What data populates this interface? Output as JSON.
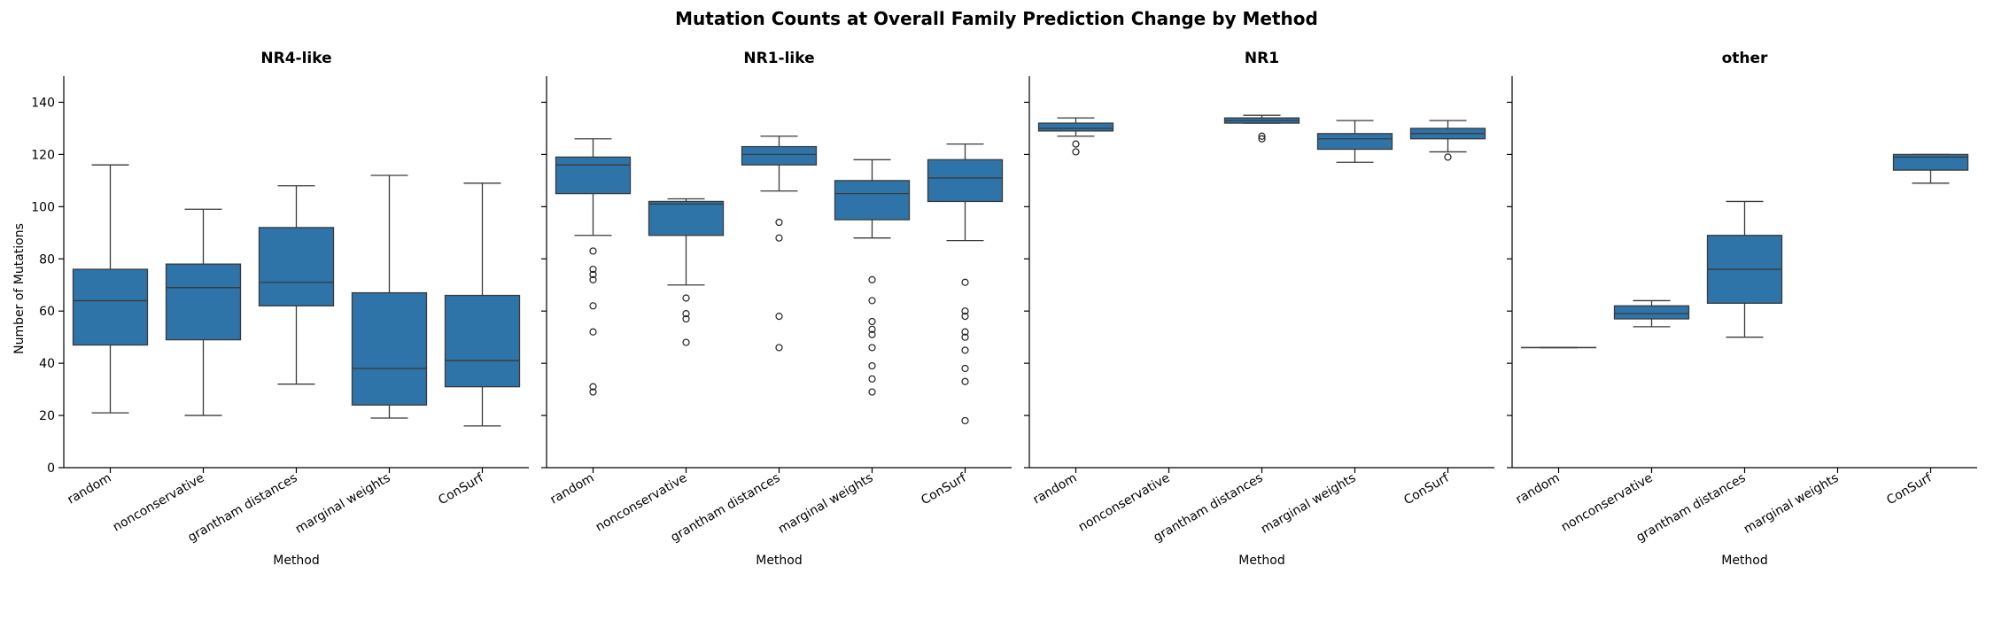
{
  "chart_data": {
    "type": "box",
    "title": "Mutation Counts at Overall Family Prediction Change by Method",
    "ylabel": "Number of Mutations",
    "xlabel": "Method",
    "ylim": [
      0,
      150
    ],
    "yticks": [
      0,
      20,
      40,
      60,
      80,
      100,
      120,
      140
    ],
    "categories": [
      "random",
      "nonconservative",
      "grantham distances",
      "marginal weights",
      "ConSurf"
    ],
    "box_color": "#2e74a9",
    "panels": [
      {
        "name": "NR4-like",
        "boxes": [
          {
            "method": "random",
            "q1": 47,
            "median": 64,
            "q3": 76,
            "whisker_low": 21,
            "whisker_high": 116,
            "outliers": []
          },
          {
            "method": "nonconservative",
            "q1": 49,
            "median": 69,
            "q3": 78,
            "whisker_low": 20,
            "whisker_high": 99,
            "outliers": []
          },
          {
            "method": "grantham distances",
            "q1": 62,
            "median": 71,
            "q3": 92,
            "whisker_low": 32,
            "whisker_high": 108,
            "outliers": []
          },
          {
            "method": "marginal weights",
            "q1": 24,
            "median": 38,
            "q3": 67,
            "whisker_low": 19,
            "whisker_high": 112,
            "outliers": []
          },
          {
            "method": "ConSurf",
            "q1": 31,
            "median": 41,
            "q3": 66,
            "whisker_low": 16,
            "whisker_high": 109,
            "outliers": []
          }
        ]
      },
      {
        "name": "NR1-like",
        "boxes": [
          {
            "method": "random",
            "q1": 105,
            "median": 116,
            "q3": 119,
            "whisker_low": 89,
            "whisker_high": 126,
            "outliers": [
              83,
              76,
              74,
              72,
              62,
              52,
              31,
              29
            ]
          },
          {
            "method": "nonconservative",
            "q1": 89,
            "median": 101,
            "q3": 102,
            "whisker_low": 70,
            "whisker_high": 103,
            "outliers": [
              65,
              59,
              57,
              48
            ]
          },
          {
            "method": "grantham distances",
            "q1": 116,
            "median": 120,
            "q3": 123,
            "whisker_low": 106,
            "whisker_high": 127,
            "outliers": [
              94,
              88,
              58,
              46
            ]
          },
          {
            "method": "marginal weights",
            "q1": 95,
            "median": 105,
            "q3": 110,
            "whisker_low": 88,
            "whisker_high": 118,
            "outliers": [
              72,
              64,
              56,
              53,
              51,
              46,
              39,
              34,
              29
            ]
          },
          {
            "method": "ConSurf",
            "q1": 102,
            "median": 111,
            "q3": 118,
            "whisker_low": 87,
            "whisker_high": 124,
            "outliers": [
              71,
              60,
              58,
              52,
              50,
              45,
              38,
              33,
              18
            ]
          }
        ]
      },
      {
        "name": "NR1",
        "boxes": [
          {
            "method": "random",
            "q1": 129,
            "median": 130,
            "q3": 132,
            "whisker_low": 127,
            "whisker_high": 134,
            "outliers": [
              124,
              121
            ]
          },
          {
            "method": "nonconservative",
            "empty": true
          },
          {
            "method": "grantham distances",
            "q1": 132,
            "median": 133,
            "q3": 134,
            "whisker_low": 132,
            "whisker_high": 135,
            "outliers": [
              127,
              126
            ]
          },
          {
            "method": "marginal weights",
            "q1": 122,
            "median": 126,
            "q3": 128,
            "whisker_low": 117,
            "whisker_high": 133,
            "outliers": []
          },
          {
            "method": "ConSurf",
            "q1": 126,
            "median": 128,
            "q3": 130,
            "whisker_low": 121,
            "whisker_high": 133,
            "outliers": [
              119
            ]
          }
        ]
      },
      {
        "name": "other",
        "boxes": [
          {
            "method": "random",
            "q1": 46,
            "median": 46,
            "q3": 46,
            "whisker_low": 46,
            "whisker_high": 46,
            "outliers": []
          },
          {
            "method": "nonconservative",
            "q1": 57,
            "median": 59,
            "q3": 62,
            "whisker_low": 54,
            "whisker_high": 64,
            "outliers": []
          },
          {
            "method": "grantham distances",
            "q1": 63,
            "median": 76,
            "q3": 89,
            "whisker_low": 50,
            "whisker_high": 102,
            "outliers": []
          },
          {
            "method": "marginal weights",
            "empty": true
          },
          {
            "method": "ConSurf",
            "q1": 114,
            "median": 119,
            "q3": 120,
            "whisker_low": 109,
            "whisker_high": 120,
            "outliers": []
          }
        ]
      }
    ]
  }
}
